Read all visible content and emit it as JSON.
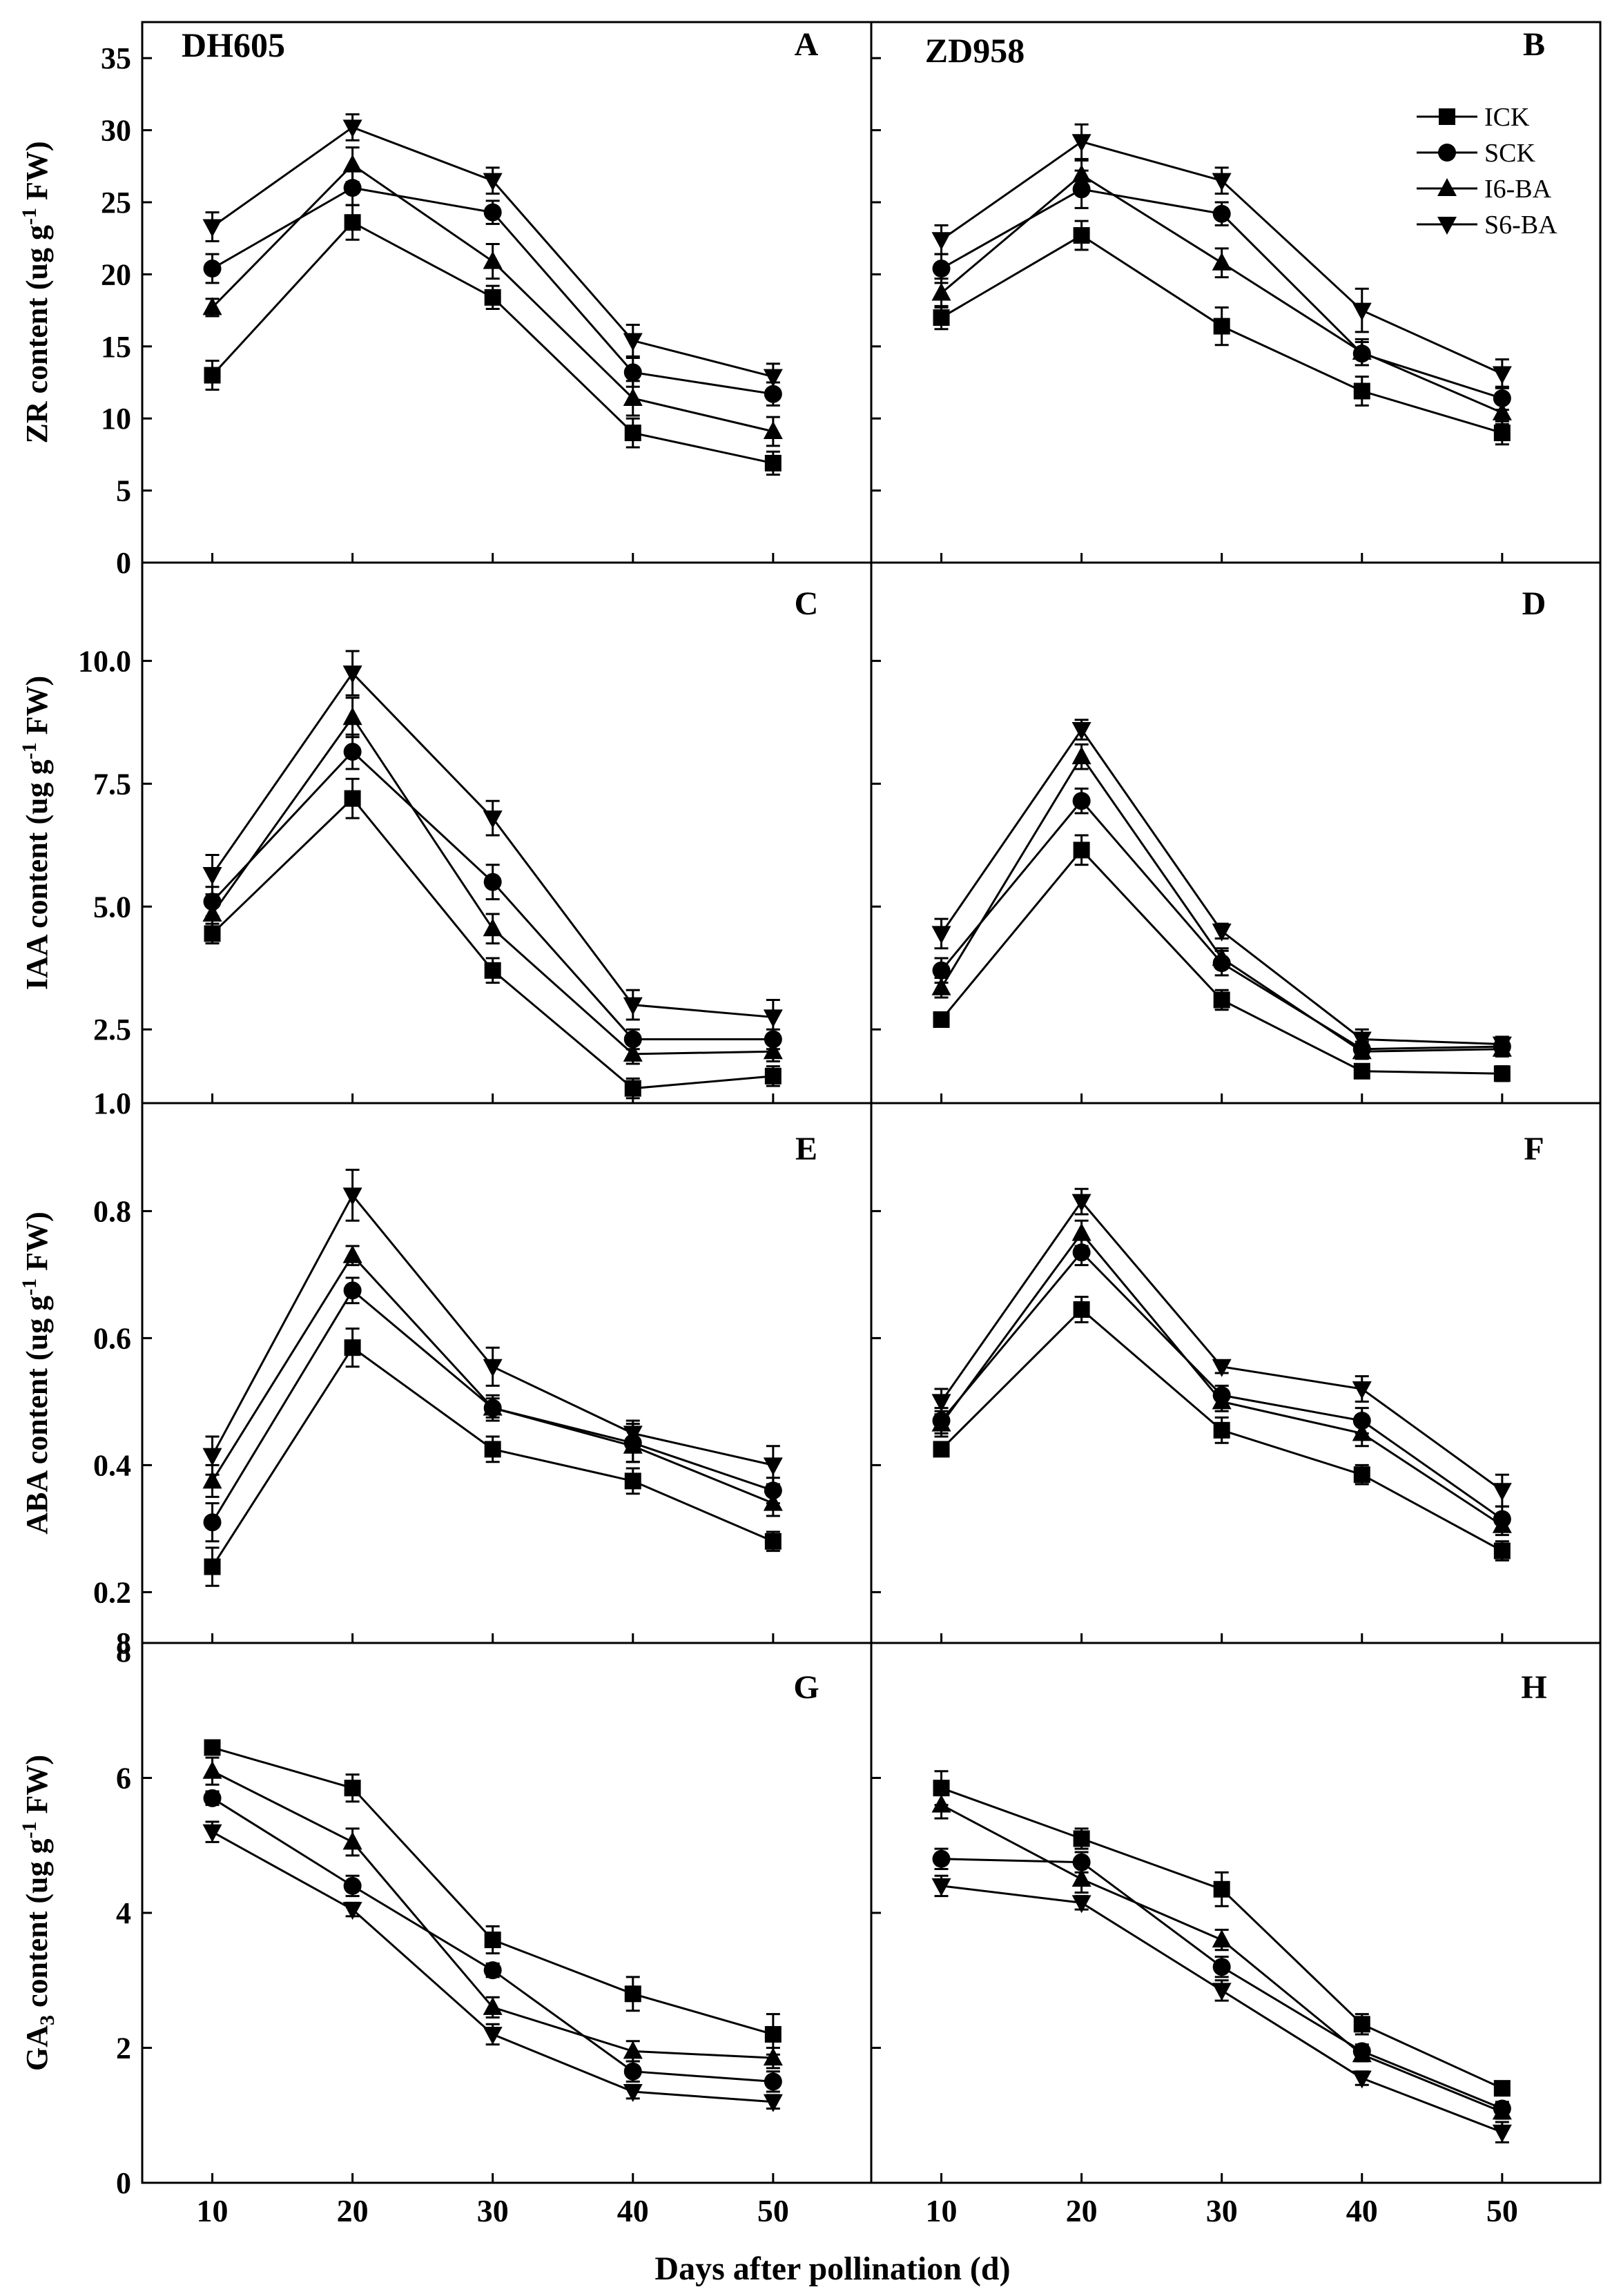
{
  "chart_data": {
    "type": "line",
    "x_label": "Days after pollination (d)",
    "x": [
      10,
      20,
      30,
      40,
      50
    ],
    "x_ticks": [
      "10",
      "20",
      "30",
      "40",
      "50"
    ],
    "cultivars": [
      "DH605",
      "ZD958"
    ],
    "legend": [
      "ICK",
      "SCK",
      "I6-BA",
      "S6-BA"
    ],
    "rows": [
      {
        "ylabel_pre": "ZR content (ug g",
        "ylabel_sup": "-1",
        "ylabel_post": " FW)",
        "ylim": [
          0,
          37.5
        ],
        "yticks": [
          {
            "v": 0,
            "label": "0"
          },
          {
            "v": 5,
            "label": "5"
          },
          {
            "v": 10,
            "label": "10"
          },
          {
            "v": 15,
            "label": "15"
          },
          {
            "v": 20,
            "label": "20"
          },
          {
            "v": 25,
            "label": "25"
          },
          {
            "v": 30,
            "label": "30"
          },
          {
            "v": 35,
            "label": "35"
          }
        ],
        "panels": [
          {
            "label": "A",
            "series": [
              {
                "name": "ICK",
                "values": [
                  13.0,
                  23.6,
                  18.4,
                  9.0,
                  6.9
                ],
                "err": [
                  1.0,
                  1.2,
                  0.8,
                  1.0,
                  0.8
                ]
              },
              {
                "name": "SCK",
                "values": [
                  20.4,
                  26.0,
                  24.3,
                  13.2,
                  11.7
                ],
                "err": [
                  1.0,
                  1.2,
                  0.8,
                  1.0,
                  0.8
                ]
              },
              {
                "name": "I6-BA",
                "values": [
                  17.7,
                  27.6,
                  20.9,
                  11.4,
                  9.1
                ],
                "err": [
                  0.6,
                  1.2,
                  1.2,
                  1.2,
                  1.0
                ]
              },
              {
                "name": "S6-BA",
                "values": [
                  23.3,
                  30.2,
                  26.5,
                  15.4,
                  12.9
                ],
                "err": [
                  1.0,
                  0.9,
                  0.9,
                  1.1,
                  0.9
                ]
              }
            ]
          },
          {
            "label": "B",
            "series": [
              {
                "name": "ICK",
                "values": [
                  17.0,
                  22.7,
                  16.4,
                  11.9,
                  9.0
                ],
                "err": [
                  0.8,
                  1.0,
                  1.3,
                  1.0,
                  0.8
                ]
              },
              {
                "name": "SCK",
                "values": [
                  20.4,
                  25.9,
                  24.2,
                  14.5,
                  11.4
                ],
                "err": [
                  1.0,
                  1.3,
                  0.8,
                  0.8,
                  0.8
                ]
              },
              {
                "name": "I6-BA",
                "values": [
                  18.7,
                  26.9,
                  20.8,
                  14.6,
                  10.4
                ],
                "err": [
                  1.0,
                  1.0,
                  1.0,
                  0.9,
                  0.8
                ]
              },
              {
                "name": "S6-BA",
                "values": [
                  22.4,
                  29.2,
                  26.5,
                  17.5,
                  13.1
                ],
                "err": [
                  1.0,
                  1.2,
                  0.9,
                  1.5,
                  1.0
                ]
              }
            ]
          }
        ]
      },
      {
        "ylabel_pre": "IAA content (ug g",
        "ylabel_sup": "-1",
        "ylabel_post": " FW)",
        "ylim": [
          1.0,
          12.0
        ],
        "yticks": [
          {
            "v": 1.0,
            "label": "1.0"
          },
          {
            "v": 2.5,
            "label": "2.5"
          },
          {
            "v": 5.0,
            "label": "5.0"
          },
          {
            "v": 7.5,
            "label": "7.5"
          },
          {
            "v": 10.0,
            "label": "10.0"
          }
        ],
        "panels": [
          {
            "label": "C",
            "series": [
              {
                "name": "ICK",
                "values": [
                  4.45,
                  7.2,
                  3.7,
                  1.3,
                  1.55
                ],
                "err": [
                  0.2,
                  0.4,
                  0.25,
                  0.2,
                  0.2
                ]
              },
              {
                "name": "SCK",
                "values": [
                  5.1,
                  8.15,
                  5.5,
                  2.3,
                  2.3
                ],
                "err": [
                  0.3,
                  0.35,
                  0.35,
                  0.2,
                  0.2
                ]
              },
              {
                "name": "I6-BA",
                "values": [
                  4.85,
                  8.85,
                  4.55,
                  2.0,
                  2.05
                ],
                "err": [
                  0.3,
                  0.4,
                  0.3,
                  0.2,
                  0.2
                ]
              },
              {
                "name": "S6-BA",
                "values": [
                  5.65,
                  9.75,
                  6.8,
                  3.0,
                  2.75
                ],
                "err": [
                  0.4,
                  0.45,
                  0.35,
                  0.3,
                  0.35
                ]
              }
            ]
          },
          {
            "label": "D",
            "series": [
              {
                "name": "ICK",
                "values": [
                  2.7,
                  6.15,
                  3.1,
                  1.65,
                  1.6
                ],
                "err": [
                  0.1,
                  0.3,
                  0.2,
                  0.1,
                  0.15
                ]
              },
              {
                "name": "SCK",
                "values": [
                  3.7,
                  7.15,
                  3.85,
                  2.1,
                  2.15
                ],
                "err": [
                  0.25,
                  0.25,
                  0.25,
                  0.15,
                  0.15
                ]
              },
              {
                "name": "I6-BA",
                "values": [
                  3.35,
                  8.05,
                  3.95,
                  2.05,
                  2.1
                ],
                "err": [
                  0.2,
                  0.25,
                  0.2,
                  0.15,
                  0.15
                ]
              },
              {
                "name": "S6-BA",
                "values": [
                  4.45,
                  8.6,
                  4.5,
                  2.3,
                  2.2
                ],
                "err": [
                  0.3,
                  0.2,
                  0.15,
                  0.2,
                  0.15
                ]
              }
            ]
          }
        ]
      },
      {
        "ylabel_pre": "ABA content (ug g",
        "ylabel_sup": "-1",
        "ylabel_post": " FW)",
        "ylim": [
          0.12,
          0.97
        ],
        "yticks": [
          {
            "v": 0.2,
            "label": "0.2"
          },
          {
            "v": 0.4,
            "label": "0.4"
          },
          {
            "v": 0.6,
            "label": "0.6"
          },
          {
            "v": 0.8,
            "label": "0.8"
          }
        ],
        "panels": [
          {
            "label": "E",
            "series": [
              {
                "name": "ICK",
                "values": [
                  0.24,
                  0.585,
                  0.425,
                  0.375,
                  0.28
                ],
                "err": [
                  0.03,
                  0.03,
                  0.02,
                  0.02,
                  0.015
                ]
              },
              {
                "name": "SCK",
                "values": [
                  0.31,
                  0.675,
                  0.49,
                  0.435,
                  0.36
                ],
                "err": [
                  0.03,
                  0.02,
                  0.02,
                  0.03,
                  0.02
                ]
              },
              {
                "name": "I6-BA",
                "values": [
                  0.375,
                  0.73,
                  0.49,
                  0.43,
                  0.34
                ],
                "err": [
                  0.025,
                  0.015,
                  0.015,
                  0.025,
                  0.02
                ]
              },
              {
                "name": "S6-BA",
                "values": [
                  0.415,
                  0.825,
                  0.555,
                  0.45,
                  0.4
                ],
                "err": [
                  0.03,
                  0.04,
                  0.03,
                  0.02,
                  0.03
                ]
              }
            ]
          },
          {
            "label": "F",
            "series": [
              {
                "name": "ICK",
                "values": [
                  0.425,
                  0.645,
                  0.455,
                  0.385,
                  0.265
                ],
                "err": [
                  0.01,
                  0.02,
                  0.02,
                  0.015,
                  0.015
                ]
              },
              {
                "name": "SCK",
                "values": [
                  0.47,
                  0.735,
                  0.51,
                  0.47,
                  0.315
                ],
                "err": [
                  0.02,
                  0.02,
                  0.015,
                  0.02,
                  0.02
                ]
              },
              {
                "name": "I6-BA",
                "values": [
                  0.465,
                  0.765,
                  0.5,
                  0.45,
                  0.305
                ],
                "err": [
                  0.02,
                  0.02,
                  0.015,
                  0.02,
                  0.015
                ]
              },
              {
                "name": "S6-BA",
                "values": [
                  0.5,
                  0.815,
                  0.555,
                  0.52,
                  0.36
                ],
                "err": [
                  0.02,
                  0.02,
                  0.01,
                  0.02,
                  0.025
                ]
              }
            ]
          }
        ]
      },
      {
        "ylabel_pre": "GA",
        "ylabel_sub": "3",
        "ylabel_mid": " content (ug g",
        "ylabel_sup": "-1",
        "ylabel_post": " FW)",
        "ylim": [
          0,
          8
        ],
        "yticks": [
          {
            "v": 0,
            "label": "0"
          },
          {
            "v": 2,
            "label": "2"
          },
          {
            "v": 4,
            "label": "4"
          },
          {
            "v": 6,
            "label": "6"
          },
          {
            "v": 8,
            "label": "8"
          }
        ],
        "extra_label": "8",
        "panels": [
          {
            "label": "G",
            "series": [
              {
                "name": "ICK",
                "values": [
                  6.45,
                  5.85,
                  3.6,
                  2.8,
                  2.2
                ],
                "err": [
                  0.1,
                  0.2,
                  0.2,
                  0.25,
                  0.3
                ]
              },
              {
                "name": "SCK",
                "values": [
                  5.7,
                  4.4,
                  3.15,
                  1.65,
                  1.5
                ],
                "err": [
                  0.1,
                  0.15,
                  0.1,
                  0.15,
                  0.15
                ]
              },
              {
                "name": "I6-BA",
                "values": [
                  6.1,
                  5.05,
                  2.6,
                  1.95,
                  1.85
                ],
                "err": [
                  0.2,
                  0.2,
                  0.15,
                  0.15,
                  0.15
                ]
              },
              {
                "name": "S6-BA",
                "values": [
                  5.2,
                  4.05,
                  2.2,
                  1.35,
                  1.2
                ],
                "err": [
                  0.15,
                  0.1,
                  0.15,
                  0.1,
                  0.1
                ]
              }
            ]
          },
          {
            "label": "H",
            "series": [
              {
                "name": "ICK",
                "values": [
                  5.85,
                  5.1,
                  4.35,
                  2.35,
                  1.4
                ],
                "err": [
                  0.25,
                  0.15,
                  0.25,
                  0.15,
                  0.1
                ]
              },
              {
                "name": "SCK",
                "values": [
                  4.8,
                  4.75,
                  3.2,
                  1.95,
                  1.1
                ],
                "err": [
                  0.15,
                  0.15,
                  0.15,
                  0.1,
                  0.1
                ]
              },
              {
                "name": "I6-BA",
                "values": [
                  5.6,
                  4.5,
                  3.6,
                  1.9,
                  1.05
                ],
                "err": [
                  0.2,
                  0.2,
                  0.15,
                  0.1,
                  0.1
                ]
              },
              {
                "name": "S6-BA",
                "values": [
                  4.4,
                  4.15,
                  2.85,
                  1.55,
                  0.75
                ],
                "err": [
                  0.15,
                  0.1,
                  0.15,
                  0.1,
                  0.15
                ]
              }
            ]
          }
        ]
      }
    ]
  }
}
